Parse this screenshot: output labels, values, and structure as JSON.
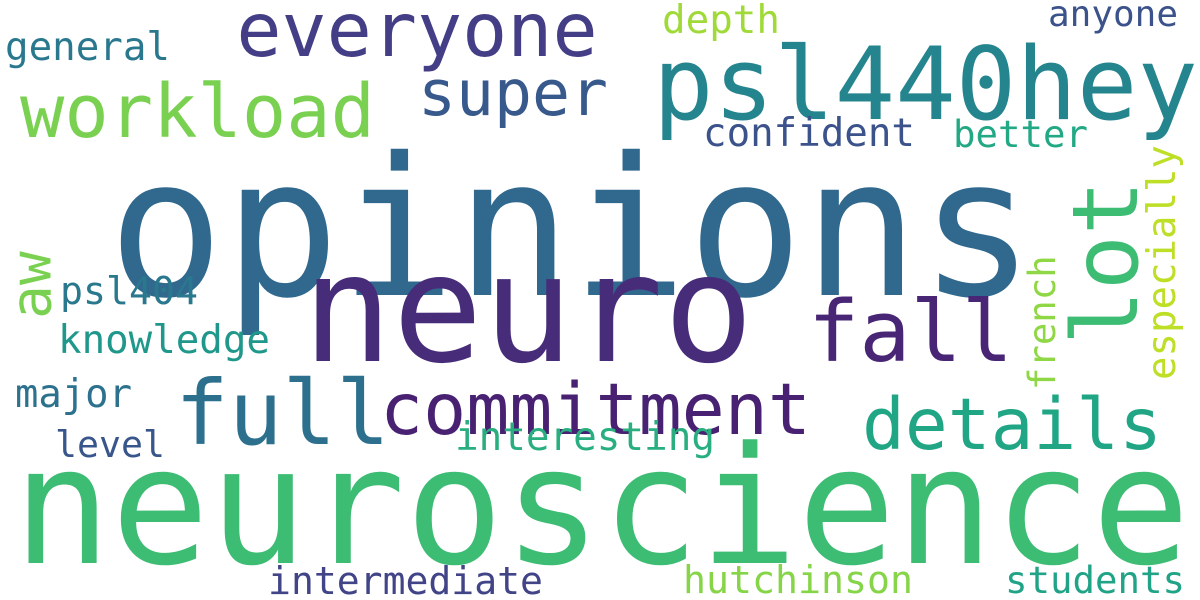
{
  "words": [
    {
      "id": "opinions",
      "text": "opinions",
      "color": "#30688e"
    },
    {
      "id": "neuroscience",
      "text": "neuroscience",
      "color": "#3dbc74"
    },
    {
      "id": "neuro",
      "text": "neuro",
      "color": "#472c7a"
    },
    {
      "id": "everyone",
      "text": "everyone",
      "color": "#433e85"
    },
    {
      "id": "psl440hey",
      "text": "psl440hey",
      "color": "#25858e"
    },
    {
      "id": "commitment",
      "text": "commitment",
      "color": "#482173"
    },
    {
      "id": "full",
      "text": "full",
      "color": "#2d708e"
    },
    {
      "id": "fall",
      "text": "fall",
      "color": "#482575"
    },
    {
      "id": "details",
      "text": "details",
      "color": "#21a685"
    },
    {
      "id": "workload",
      "text": "workload",
      "color": "#7ad151"
    },
    {
      "id": "super",
      "text": "super",
      "color": "#38598c"
    },
    {
      "id": "lot",
      "text": "lot",
      "color": "#3dbc74"
    },
    {
      "id": "aw",
      "text": "aw",
      "color": "#7ad151"
    },
    {
      "id": "general",
      "text": "general",
      "color": "#2a788e"
    },
    {
      "id": "depth",
      "text": "depth",
      "color": "#a0da39"
    },
    {
      "id": "anyone",
      "text": "anyone",
      "color": "#3b528b"
    },
    {
      "id": "confident",
      "text": "confident",
      "color": "#3b528b"
    },
    {
      "id": "better",
      "text": "better",
      "color": "#22a884"
    },
    {
      "id": "especially",
      "text": "especially",
      "color": "#bddf26"
    },
    {
      "id": "french",
      "text": "french",
      "color": "#8fd744"
    },
    {
      "id": "psl404",
      "text": "psl404",
      "color": "#2a788e"
    },
    {
      "id": "knowledge",
      "text": "knowledge",
      "color": "#1f988b"
    },
    {
      "id": "major",
      "text": "major",
      "color": "#2c728e"
    },
    {
      "id": "level",
      "text": "level",
      "color": "#39568c"
    },
    {
      "id": "interesting",
      "text": "interesting",
      "color": "#29af7f"
    },
    {
      "id": "intermediate",
      "text": "intermediate",
      "color": "#414487"
    },
    {
      "id": "hutchinson",
      "text": "hutchinson",
      "color": "#86d549"
    },
    {
      "id": "students",
      "text": "students",
      "color": "#20a386"
    }
  ]
}
